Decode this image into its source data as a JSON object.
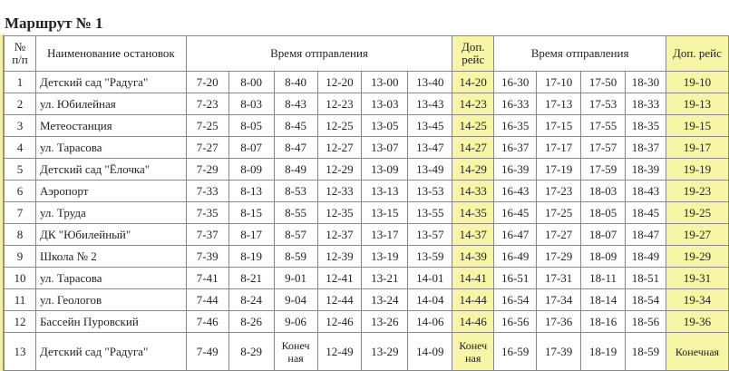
{
  "title": "Маршрут № 1",
  "header": {
    "num": "№ п/п",
    "name": "Наименование остановок",
    "times1": "Время отправления",
    "extra1": "Доп. рейс",
    "times2": "Время отправления",
    "extra2": "Доп. рейс"
  },
  "accent": "#f7f5a6",
  "rows": [
    [
      "1",
      "Детский сад \"Радуга\"",
      "7-20",
      "8-00",
      "8-40",
      "12-20",
      "13-00",
      "13-40",
      "14-20",
      "16-30",
      "17-10",
      "17-50",
      "18-30",
      "19-10"
    ],
    [
      "2",
      "ул. Юбилейная",
      "7-23",
      "8-03",
      "8-43",
      "12-23",
      "13-03",
      "13-43",
      "14-23",
      "16-33",
      "17-13",
      "17-53",
      "18-33",
      "19-13"
    ],
    [
      "3",
      "Метеостанция",
      "7-25",
      "8-05",
      "8-45",
      "12-25",
      "13-05",
      "13-45",
      "14-25",
      "16-35",
      "17-15",
      "17-55",
      "18-35",
      "19-15"
    ],
    [
      "4",
      "ул. Тарасова",
      "7-27",
      "8-07",
      "8-47",
      "12-27",
      "13-07",
      "13-47",
      "14-27",
      "16-37",
      "17-17",
      "17-57",
      "18-37",
      "19-17"
    ],
    [
      "5",
      "Детский сад \"Ёлочка\"",
      "7-29",
      "8-09",
      "8-49",
      "12-29",
      "13-09",
      "13-49",
      "14-29",
      "16-39",
      "17-19",
      "17-59",
      "18-39",
      "19-19"
    ],
    [
      "6",
      "Аэропорт",
      "7-33",
      "8-13",
      "8-53",
      "12-33",
      "13-13",
      "13-53",
      "14-33",
      "16-43",
      "17-23",
      "18-03",
      "18-43",
      "19-23"
    ],
    [
      "7",
      "ул. Труда",
      "7-35",
      "8-15",
      "8-55",
      "12-35",
      "13-15",
      "13-55",
      "14-35",
      "16-45",
      "17-25",
      "18-05",
      "18-45",
      "19-25"
    ],
    [
      "8",
      "ДК \"Юбилейный\"",
      "7-37",
      "8-17",
      "8-57",
      "12-37",
      "13-17",
      "13-57",
      "14-37",
      "16-47",
      "17-27",
      "18-07",
      "18-47",
      "19-27"
    ],
    [
      "9",
      "Школа № 2",
      "7-39",
      "8-19",
      "8-59",
      "12-39",
      "13-19",
      "13-59",
      "14-39",
      "16-49",
      "17-29",
      "18-09",
      "18-49",
      "19-29"
    ],
    [
      "10",
      "ул. Тарасова",
      "7-41",
      "8-21",
      "9-01",
      "12-41",
      "13-21",
      "14-01",
      "14-41",
      "16-51",
      "17-31",
      "18-11",
      "18-51",
      "19-31"
    ],
    [
      "11",
      "ул. Геологов",
      "7-44",
      "8-24",
      "9-04",
      "12-44",
      "13-24",
      "14-04",
      "14-44",
      "16-54",
      "17-34",
      "18-14",
      "18-54",
      "19-34"
    ],
    [
      "12",
      "Бассейн Пуровский",
      "7-46",
      "8-26",
      "9-06",
      "12-46",
      "13-26",
      "14-06",
      "14-46",
      "16-56",
      "17-36",
      "18-16",
      "18-56",
      "19-36"
    ],
    [
      "13",
      "Детский сад \"Радуга\"",
      "7-49",
      "8-29",
      "Конечная",
      "12-49",
      "13-29",
      "14-09",
      "Конечная",
      "16-59",
      "17-39",
      "18-19",
      "18-59",
      "Конечная"
    ]
  ]
}
